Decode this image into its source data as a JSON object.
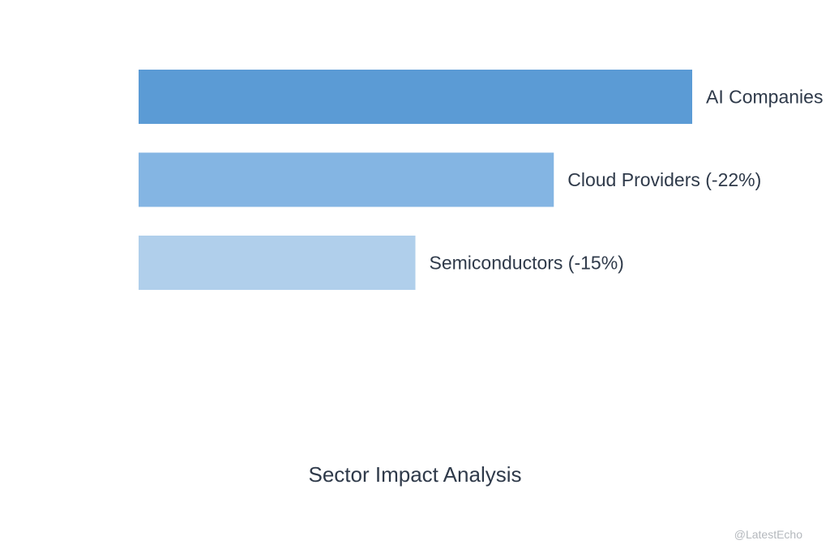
{
  "chart_data": {
    "type": "bar",
    "orientation": "horizontal",
    "title": "Sector Impact Analysis",
    "categories": [
      "AI Companies",
      "Cloud Providers (-22%)",
      "Semiconductors (-15%)"
    ],
    "series": [
      {
        "values": [
          40,
          30,
          20
        ]
      }
    ],
    "bar_colors": [
      "#5b9bd5",
      "#84b5e3",
      "#b0cfeb"
    ],
    "xlim": [
      0,
      40
    ],
    "grid": false,
    "legend": "none"
  },
  "watermark": "@LatestEcho"
}
